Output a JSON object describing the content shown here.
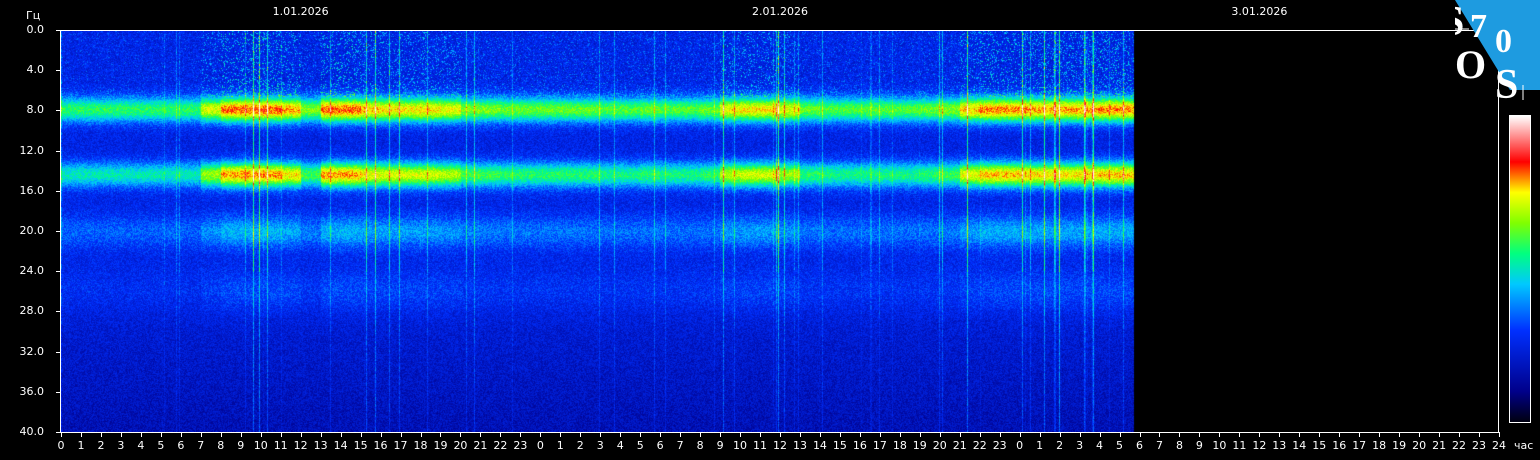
{
  "chart_data": {
    "type": "heatmap",
    "title": "",
    "ylabel": "Гц",
    "xlabel": "час",
    "ylim": [
      0,
      40
    ],
    "y_ticks": [
      "0.0",
      "4.0",
      "8.0",
      "12.0",
      "16.0",
      "20.0",
      "24.0",
      "28.0",
      "32.0",
      "36.0",
      "40.0"
    ],
    "dates": [
      "1.01.2026",
      "2.01.2026",
      "3.01.2026"
    ],
    "x_range_hours": [
      0,
      72
    ],
    "x_tick_labels": [
      "0",
      "1",
      "2",
      "3",
      "4",
      "5",
      "6",
      "7",
      "8",
      "9",
      "10",
      "11",
      "12",
      "13",
      "14",
      "15",
      "16",
      "17",
      "18",
      "19",
      "20",
      "21",
      "22",
      "23",
      "0",
      "1",
      "2",
      "3",
      "4",
      "5",
      "6",
      "7",
      "8",
      "9",
      "10",
      "11",
      "12",
      "13",
      "14",
      "15",
      "16",
      "17",
      "18",
      "19",
      "20",
      "21",
      "22",
      "23",
      "0",
      "1",
      "2",
      "3",
      "4",
      "5",
      "6",
      "7",
      "8",
      "9",
      "10",
      "11",
      "12",
      "13",
      "14",
      "15",
      "16",
      "17",
      "18",
      "19",
      "20",
      "21",
      "22",
      "23",
      "24"
    ],
    "data_end_hour": 53.75,
    "resonance_bands_hz": [
      7.8,
      14.3,
      20.0,
      26.0,
      33.0
    ],
    "relative_activity_by_hour": [
      0.3,
      0.3,
      0.3,
      0.3,
      0.3,
      0.3,
      0.3,
      0.7,
      1.0,
      1.0,
      1.0,
      0.9,
      0.5,
      1.0,
      1.0,
      0.85,
      0.8,
      0.8,
      0.8,
      0.75,
      0.5,
      0.5,
      0.45,
      0.45,
      0.45,
      0.45,
      0.45,
      0.4,
      0.4,
      0.45,
      0.4,
      0.4,
      0.45,
      0.75,
      0.8,
      0.8,
      0.7,
      0.45,
      0.4,
      0.4,
      0.4,
      0.4,
      0.4,
      0.45,
      0.5,
      0.85,
      0.95,
      0.95,
      0.9,
      0.9,
      0.9,
      0.9,
      0.95,
      0.95
    ],
    "colorscale": [
      "#000010",
      "#00008a",
      "#0030ff",
      "#00c8ff",
      "#00ff80",
      "#80ff00",
      "#ffff00",
      "#ff0000",
      "#ffffff"
    ],
    "grid": false,
    "legend": "colorbar-right"
  },
  "logo": {
    "text": "SOS70",
    "color": "#1e9be0"
  }
}
